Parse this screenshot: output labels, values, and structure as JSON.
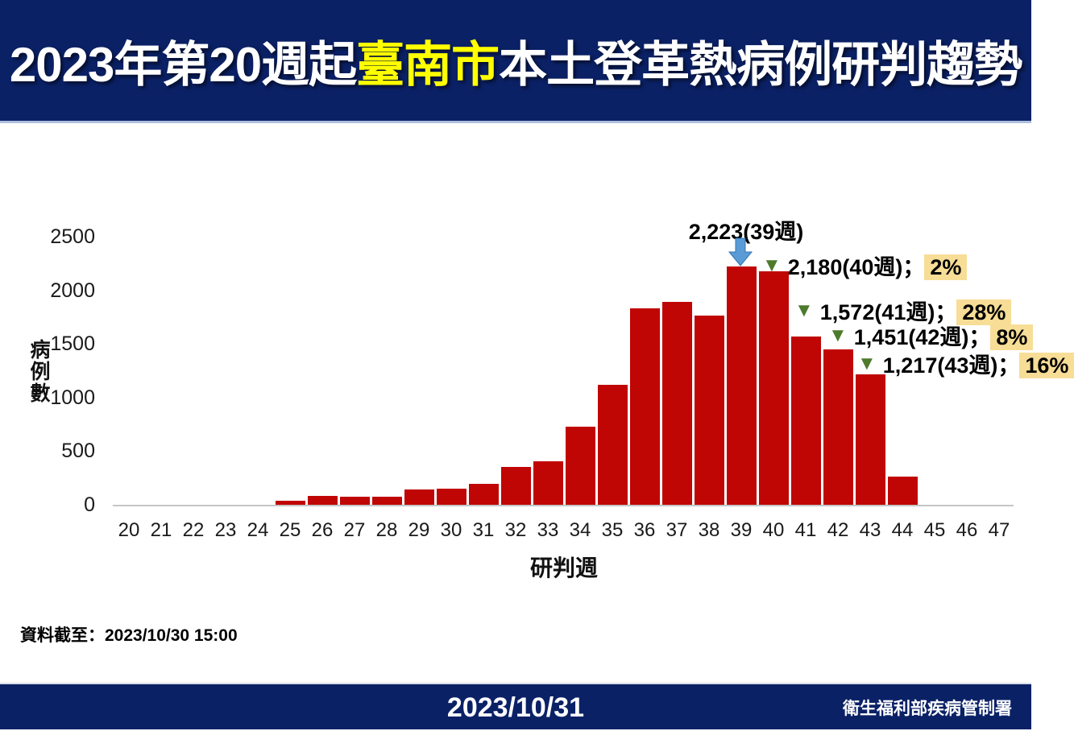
{
  "header": {
    "title_prefix": "2023年第20週起",
    "title_highlight": "臺南市",
    "title_suffix": "本土登革熱病例研判趨勢",
    "bg_color": "#0B2166",
    "highlight_color": "#FFFF00"
  },
  "chart_data": {
    "type": "bar",
    "title": "2023年第20週起臺南市本土登革熱病例研判趨勢",
    "xlabel": "研判週",
    "ylabel": "病例數",
    "ylim": [
      0,
      2500
    ],
    "yticks": [
      0,
      500,
      1000,
      1500,
      2000,
      2500
    ],
    "grid": false,
    "bar_color": "#C00505",
    "axis_color": "#C6C6C6",
    "categories": [
      20,
      21,
      22,
      23,
      24,
      25,
      26,
      27,
      28,
      29,
      30,
      31,
      32,
      33,
      34,
      35,
      36,
      37,
      38,
      39,
      40,
      41,
      42,
      43,
      44,
      45,
      46,
      47
    ],
    "values": [
      0,
      0,
      0,
      0,
      0,
      35,
      85,
      75,
      75,
      145,
      150,
      195,
      355,
      405,
      730,
      1120,
      1830,
      1890,
      1765,
      2223,
      2180,
      1572,
      1451,
      1217,
      265,
      0,
      0,
      0
    ],
    "annotations": {
      "peak": {
        "text": "2,223(39週)",
        "week": 39,
        "value": 2223,
        "arrow_color": "#5B9BD5"
      },
      "separator": "；",
      "triangle_color": "#4E7A2C",
      "percent_highlight_color": "#F7DD96",
      "drops": [
        {
          "label": "2,180(40週)",
          "week": 40,
          "value": 2180,
          "percent": "2%"
        },
        {
          "label": "1,572(41週)",
          "week": 41,
          "value": 1572,
          "percent": "28%"
        },
        {
          "label": "1,451(42週)",
          "week": 42,
          "value": 1451,
          "percent": "8%"
        },
        {
          "label": "1,217(43週)",
          "week": 43,
          "value": 1217,
          "percent": "16%"
        }
      ]
    }
  },
  "notes": {
    "data_cutoff": "資料截至：2023/10/30 15:00"
  },
  "footer": {
    "date": "2023/10/31",
    "org": "衛生福利部疾病管制署"
  }
}
